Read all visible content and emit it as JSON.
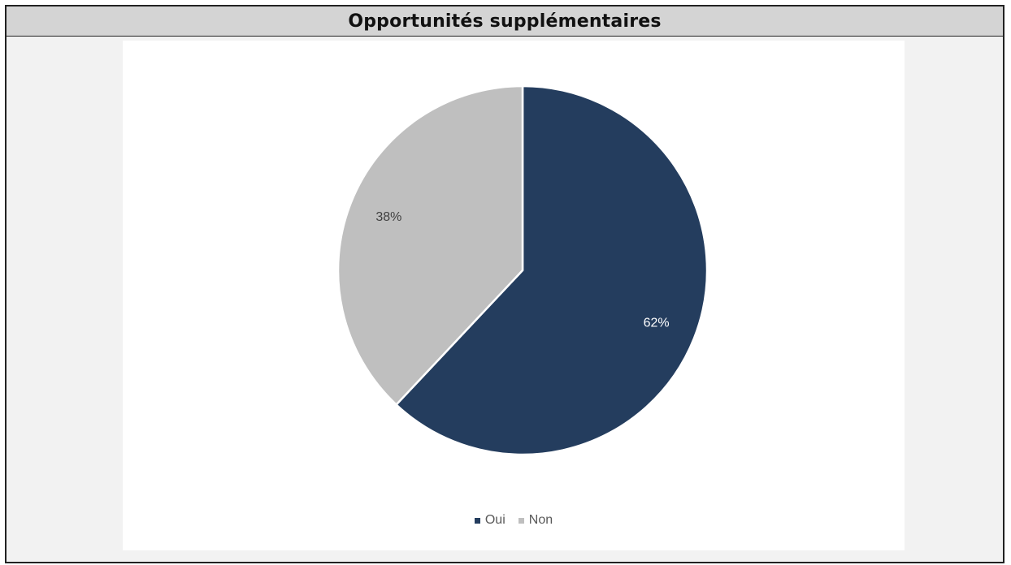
{
  "header": {
    "title": "Opportunités supplémentaires"
  },
  "chart_data": {
    "type": "pie",
    "title": "",
    "categories": [
      "Oui",
      "Non"
    ],
    "values": [
      62,
      38
    ],
    "labels": [
      "62%",
      "38%"
    ],
    "colors": [
      "#243d5e",
      "#bfbfbf"
    ],
    "label_colors": [
      "#ffffff",
      "#404040"
    ],
    "legend": {
      "position": "bottom",
      "items": [
        "Oui",
        "Non"
      ]
    },
    "start_angle": "12 o'clock",
    "direction": "clockwise"
  }
}
